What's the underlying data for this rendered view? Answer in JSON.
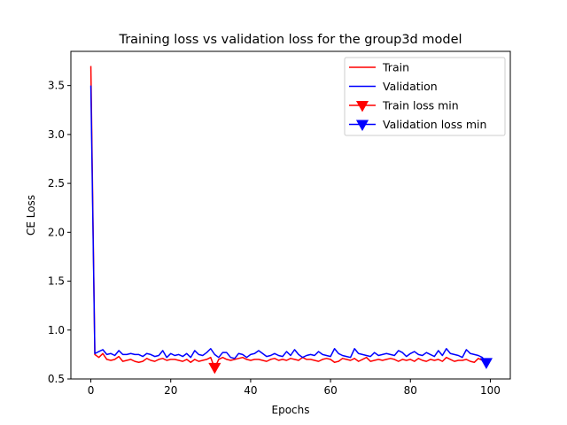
{
  "chart_data": {
    "type": "line",
    "title": "Training loss vs validation loss for the group3d model",
    "xlabel": "Epochs",
    "ylabel": "CE Loss",
    "xlim": [
      -5,
      105
    ],
    "ylim": [
      0.5,
      3.85
    ],
    "xticks": [
      0,
      20,
      40,
      60,
      80,
      100
    ],
    "yticks": [
      0.5,
      1.0,
      1.5,
      2.0,
      2.5,
      3.0,
      3.5
    ],
    "xtick_labels": [
      "0",
      "20",
      "40",
      "60",
      "80",
      "100"
    ],
    "ytick_labels": [
      "0.5",
      "1.0",
      "1.5",
      "2.0",
      "2.5",
      "3.0",
      "3.5"
    ],
    "grid": false,
    "legend_position": "top-right",
    "series": [
      {
        "name": "Train",
        "color": "#ff0000",
        "values": [
          3.7,
          0.75,
          0.72,
          0.76,
          0.7,
          0.69,
          0.7,
          0.73,
          0.68,
          0.69,
          0.7,
          0.68,
          0.67,
          0.68,
          0.71,
          0.69,
          0.68,
          0.7,
          0.71,
          0.69,
          0.7,
          0.7,
          0.69,
          0.68,
          0.7,
          0.67,
          0.7,
          0.68,
          0.69,
          0.7,
          0.72,
          0.61,
          0.7,
          0.72,
          0.7,
          0.69,
          0.7,
          0.71,
          0.72,
          0.7,
          0.69,
          0.7,
          0.7,
          0.69,
          0.68,
          0.7,
          0.71,
          0.69,
          0.7,
          0.69,
          0.71,
          0.7,
          0.69,
          0.72,
          0.7,
          0.7,
          0.69,
          0.68,
          0.7,
          0.71,
          0.7,
          0.67,
          0.68,
          0.71,
          0.7,
          0.69,
          0.71,
          0.68,
          0.7,
          0.72,
          0.68,
          0.69,
          0.7,
          0.69,
          0.7,
          0.71,
          0.7,
          0.68,
          0.7,
          0.69,
          0.7,
          0.68,
          0.71,
          0.69,
          0.68,
          0.7,
          0.69,
          0.7,
          0.68,
          0.72,
          0.7,
          0.68,
          0.69,
          0.69,
          0.7,
          0.68,
          0.67,
          0.71,
          0.69,
          0.68
        ]
      },
      {
        "name": "Validation",
        "color": "#0000ff",
        "values": [
          3.5,
          0.76,
          0.78,
          0.8,
          0.75,
          0.76,
          0.74,
          0.79,
          0.75,
          0.75,
          0.76,
          0.75,
          0.75,
          0.73,
          0.76,
          0.75,
          0.73,
          0.74,
          0.79,
          0.72,
          0.76,
          0.74,
          0.75,
          0.73,
          0.76,
          0.72,
          0.79,
          0.75,
          0.74,
          0.77,
          0.81,
          0.75,
          0.72,
          0.77,
          0.77,
          0.72,
          0.71,
          0.76,
          0.75,
          0.72,
          0.75,
          0.76,
          0.79,
          0.76,
          0.73,
          0.74,
          0.76,
          0.74,
          0.73,
          0.78,
          0.74,
          0.8,
          0.75,
          0.72,
          0.74,
          0.75,
          0.74,
          0.78,
          0.75,
          0.74,
          0.73,
          0.81,
          0.76,
          0.74,
          0.73,
          0.72,
          0.81,
          0.76,
          0.75,
          0.74,
          0.73,
          0.77,
          0.74,
          0.75,
          0.76,
          0.75,
          0.74,
          0.79,
          0.77,
          0.73,
          0.76,
          0.78,
          0.75,
          0.74,
          0.77,
          0.75,
          0.73,
          0.79,
          0.74,
          0.81,
          0.76,
          0.75,
          0.74,
          0.72,
          0.8,
          0.76,
          0.75,
          0.74,
          0.72,
          0.66
        ]
      }
    ],
    "markers": [
      {
        "name": "Train loss min",
        "color": "#ff0000",
        "x": 31,
        "y": 0.61
      },
      {
        "name": "Validation loss min",
        "color": "#0000ff",
        "x": 99,
        "y": 0.66
      }
    ]
  }
}
